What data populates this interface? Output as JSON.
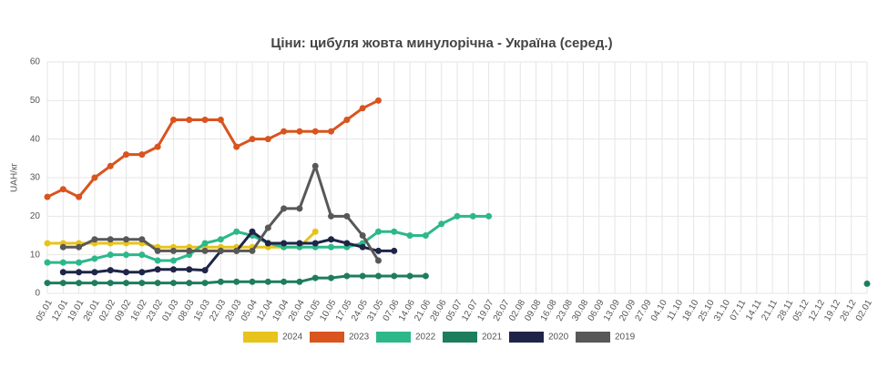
{
  "chart_data": {
    "type": "line",
    "title": "Ціни: цибуля жовта минулорічна - Україна (серед.)",
    "y_label": "UAH/кг",
    "categories": [
      "05.01",
      "12.01",
      "19.01",
      "26.01",
      "02.02",
      "09.02",
      "16.02",
      "23.02",
      "01.03",
      "08.03",
      "15.03",
      "22.03",
      "29.03",
      "05.04",
      "12.04",
      "19.04",
      "26.04",
      "03.05",
      "10.05",
      "17.05",
      "24.05",
      "31.05",
      "07.06",
      "14.06",
      "21.06",
      "28.06",
      "05.07",
      "12.07",
      "19.07",
      "26.07",
      "02.08",
      "09.08",
      "16.08",
      "23.08",
      "30.08",
      "06.09",
      "13.09",
      "20.09",
      "27.09",
      "04.10",
      "11.10",
      "18.10",
      "25.10",
      "31.10",
      "07.11",
      "14.11",
      "21.11",
      "28.11",
      "05.12",
      "12.12",
      "19.12",
      "26.12",
      "02.01"
    ],
    "ylim": [
      0,
      60
    ],
    "yticks": [
      0,
      10,
      20,
      30,
      40,
      50,
      60
    ],
    "grid": true,
    "series": [
      {
        "name": "2024",
        "color": "#e8c31c",
        "values": [
          13,
          13,
          13,
          13,
          13,
          13,
          13,
          12,
          12,
          12,
          12,
          12,
          12,
          12,
          12,
          12,
          12,
          16,
          null,
          null,
          null,
          null,
          null,
          null,
          null,
          null,
          null,
          null,
          null,
          null,
          null,
          null,
          null,
          null,
          null,
          null,
          null,
          null,
          null,
          null,
          null,
          null,
          null,
          null,
          null,
          null,
          null,
          null,
          null,
          null,
          null,
          null,
          null
        ]
      },
      {
        "name": "2023",
        "color": "#d9541e",
        "values": [
          25,
          27,
          25,
          30,
          33,
          36,
          36,
          38,
          45,
          45,
          45,
          45,
          38,
          40,
          40,
          42,
          42,
          42,
          42,
          45,
          48,
          50,
          null,
          null,
          null,
          null,
          null,
          null,
          null,
          null,
          null,
          null,
          null,
          null,
          null,
          null,
          null,
          null,
          null,
          null,
          null,
          null,
          null,
          null,
          null,
          null,
          null,
          null,
          null,
          null,
          null,
          null,
          null
        ]
      },
      {
        "name": "2022",
        "color": "#2db88a",
        "values": [
          8,
          8,
          8,
          9,
          10,
          10,
          10,
          8.5,
          8.5,
          10,
          13,
          14,
          16,
          15,
          13,
          12,
          12,
          12,
          12,
          12,
          13,
          16,
          16,
          15,
          15,
          18,
          20,
          20,
          20,
          null,
          null,
          null,
          null,
          null,
          null,
          null,
          null,
          null,
          null,
          null,
          null,
          null,
          null,
          null,
          null,
          null,
          null,
          null,
          null,
          null,
          null,
          null,
          null
        ]
      },
      {
        "name": "2021",
        "color": "#1e7d5c",
        "values": [
          2.7,
          2.7,
          2.7,
          2.7,
          2.7,
          2.7,
          2.7,
          2.7,
          2.7,
          2.7,
          2.7,
          3,
          3,
          3,
          3,
          3,
          3,
          4,
          4,
          4.5,
          4.5,
          4.5,
          4.5,
          4.5,
          4.5,
          null,
          null,
          null,
          null,
          null,
          null,
          null,
          null,
          null,
          null,
          null,
          null,
          null,
          null,
          null,
          null,
          null,
          null,
          null,
          null,
          null,
          null,
          null,
          null,
          null,
          null,
          null,
          2.5
        ]
      },
      {
        "name": "2020",
        "color": "#1f2548",
        "values": [
          null,
          5.5,
          5.5,
          5.5,
          6,
          5.5,
          5.5,
          6.2,
          6.2,
          6.2,
          6,
          11,
          11,
          16,
          13,
          13,
          13,
          13,
          14,
          13,
          12,
          11,
          11,
          null,
          null,
          null,
          null,
          null,
          null,
          null,
          null,
          null,
          null,
          null,
          null,
          null,
          null,
          null,
          null,
          null,
          null,
          null,
          null,
          null,
          null,
          null,
          null,
          null,
          null,
          null,
          null,
          null,
          null
        ]
      },
      {
        "name": "2019",
        "color": "#585858",
        "values": [
          null,
          12,
          12,
          14,
          14,
          14,
          14,
          11,
          11,
          11,
          11,
          11,
          11,
          11,
          17,
          22,
          22,
          33,
          20,
          20,
          15,
          8.5,
          null,
          null,
          null,
          null,
          null,
          null,
          null,
          null,
          null,
          null,
          null,
          null,
          null,
          null,
          null,
          null,
          null,
          null,
          null,
          null,
          null,
          null,
          null,
          null,
          null,
          null,
          null,
          null,
          null,
          null,
          null
        ]
      }
    ]
  }
}
